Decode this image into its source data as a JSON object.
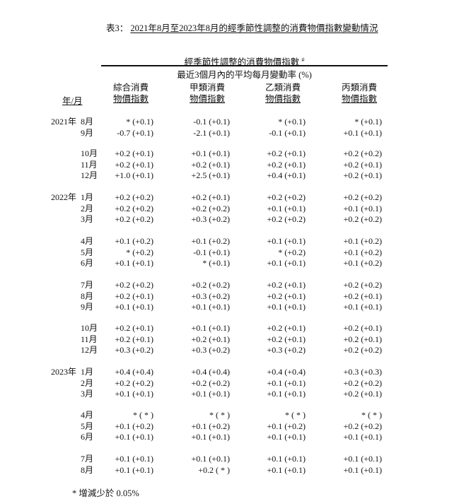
{
  "title": {
    "prefix": "表3：",
    "text": "2021年8月至2023年8月的經季節性調整的消費物價指數變動情況"
  },
  "header": {
    "group_title": "經季節性調整的消費物價指數",
    "group_mark": "#",
    "subtitle": "最近3個月內的平均每月變動率 (%)",
    "year_month": "年/月",
    "columns": [
      {
        "line1": "綜合消費",
        "line2": "物價指數"
      },
      {
        "line1": "甲類消費",
        "line2": "物價指數"
      },
      {
        "line1": "乙類消費",
        "line2": "物價指數"
      },
      {
        "line1": "丙類消費",
        "line2": "物價指數"
      }
    ]
  },
  "groups": [
    [
      {
        "year": "2021年",
        "month": "8月",
        "values": [
          "* (+0.1)",
          "-0.1 (+0.1)",
          "* (+0.1)",
          "* (+0.1)"
        ]
      },
      {
        "year": "",
        "month": "9月",
        "values": [
          "-0.7 (+0.1)",
          "-2.1 (+0.1)",
          "-0.1 (+0.1)",
          "+0.1 (+0.1)"
        ]
      }
    ],
    [
      {
        "year": "",
        "month": "10月",
        "values": [
          "+0.2 (+0.1)",
          "+0.1 (+0.1)",
          "+0.2 (+0.1)",
          "+0.2 (+0.2)"
        ]
      },
      {
        "year": "",
        "month": "11月",
        "values": [
          "+0.2 (+0.1)",
          "+0.2 (+0.1)",
          "+0.2 (+0.1)",
          "+0.2 (+0.1)"
        ]
      },
      {
        "year": "",
        "month": "12月",
        "values": [
          "+1.0 (+0.1)",
          "+2.5 (+0.1)",
          "+0.4 (+0.1)",
          "+0.2 (+0.1)"
        ]
      }
    ],
    [
      {
        "year": "2022年",
        "month": "1月",
        "values": [
          "+0.2 (+0.2)",
          "+0.2 (+0.1)",
          "+0.2 (+0.2)",
          "+0.2 (+0.2)"
        ]
      },
      {
        "year": "",
        "month": "2月",
        "values": [
          "+0.2 (+0.2)",
          "+0.2 (+0.2)",
          "+0.1 (+0.1)",
          "+0.1 (+0.1)"
        ]
      },
      {
        "year": "",
        "month": "3月",
        "values": [
          "+0.2 (+0.2)",
          "+0.3 (+0.2)",
          "+0.2 (+0.2)",
          "+0.2 (+0.2)"
        ]
      }
    ],
    [
      {
        "year": "",
        "month": "4月",
        "values": [
          "+0.1 (+0.2)",
          "+0.1 (+0.2)",
          "+0.1 (+0.1)",
          "+0.1 (+0.2)"
        ]
      },
      {
        "year": "",
        "month": "5月",
        "values": [
          "* (+0.2)",
          "-0.1 (+0.1)",
          "* (+0.2)",
          "+0.1 (+0.2)"
        ]
      },
      {
        "year": "",
        "month": "6月",
        "values": [
          "+0.1 (+0.1)",
          "* (+0.1)",
          "+0.1 (+0.1)",
          "+0.1 (+0.2)"
        ]
      }
    ],
    [
      {
        "year": "",
        "month": "7月",
        "values": [
          "+0.2 (+0.2)",
          "+0.2 (+0.2)",
          "+0.2 (+0.1)",
          "+0.2 (+0.2)"
        ]
      },
      {
        "year": "",
        "month": "8月",
        "values": [
          "+0.2 (+0.1)",
          "+0.3 (+0.2)",
          "+0.2 (+0.1)",
          "+0.2 (+0.1)"
        ]
      },
      {
        "year": "",
        "month": "9月",
        "values": [
          "+0.1 (+0.1)",
          "+0.1 (+0.1)",
          "+0.1 (+0.1)",
          "+0.1 (+0.1)"
        ]
      }
    ],
    [
      {
        "year": "",
        "month": "10月",
        "values": [
          "+0.2 (+0.1)",
          "+0.1 (+0.1)",
          "+0.2 (+0.1)",
          "+0.2 (+0.1)"
        ]
      },
      {
        "year": "",
        "month": "11月",
        "values": [
          "+0.2 (+0.1)",
          "+0.2 (+0.1)",
          "+0.2 (+0.1)",
          "+0.2 (+0.1)"
        ]
      },
      {
        "year": "",
        "month": "12月",
        "values": [
          "+0.3 (+0.2)",
          "+0.3 (+0.2)",
          "+0.3 (+0.2)",
          "+0.2 (+0.2)"
        ]
      }
    ],
    [
      {
        "year": "2023年",
        "month": "1月",
        "values": [
          "+0.4 (+0.4)",
          "+0.4 (+0.4)",
          "+0.4 (+0.4)",
          "+0.3 (+0.3)"
        ]
      },
      {
        "year": "",
        "month": "2月",
        "values": [
          "+0.2 (+0.2)",
          "+0.2 (+0.2)",
          "+0.1 (+0.1)",
          "+0.2 (+0.2)"
        ]
      },
      {
        "year": "",
        "month": "3月",
        "values": [
          "+0.1 (+0.1)",
          "+0.1 (+0.1)",
          "+0.1 (+0.1)",
          "+0.2 (+0.1)"
        ]
      }
    ],
    [
      {
        "year": "",
        "month": "4月",
        "values": [
          "* ( * )",
          "* ( * )",
          "* ( * )",
          "* ( * )"
        ]
      },
      {
        "year": "",
        "month": "5月",
        "values": [
          "+0.1 (+0.2)",
          "+0.1 (+0.2)",
          "+0.1 (+0.2)",
          "+0.2 (+0.2)"
        ]
      },
      {
        "year": "",
        "month": "6月",
        "values": [
          "+0.1 (+0.1)",
          "+0.1 (+0.1)",
          "+0.1 (+0.1)",
          "+0.1 (+0.1)"
        ]
      }
    ],
    [
      {
        "year": "",
        "month": "7月",
        "values": [
          "+0.1 (+0.1)",
          "+0.1 (+0.1)",
          "+0.1 (+0.1)",
          "+0.1 (+0.1)"
        ]
      },
      {
        "year": "",
        "month": "8月",
        "values": [
          "+0.1 (+0.1)",
          "+0.2 ( * )",
          "+0.1 (+0.1)",
          "+0.1 (+0.1)"
        ]
      }
    ]
  ],
  "footnote": "* 增減少於 0.05%"
}
